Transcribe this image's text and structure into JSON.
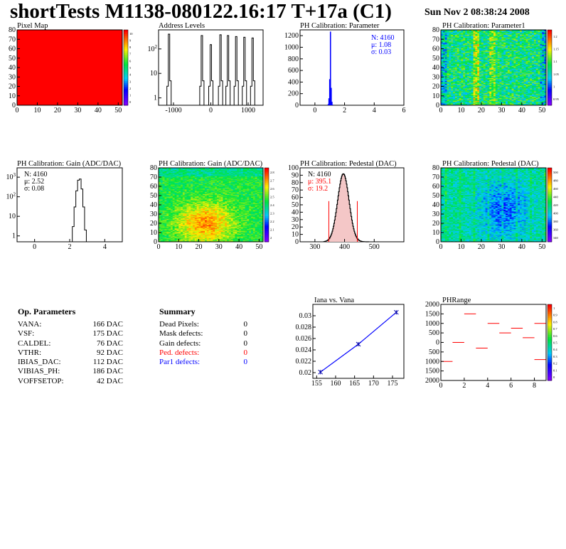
{
  "header": {
    "title": "shortTests M1138-080122.16:17 T+17a (C1)",
    "date": "Sun Nov  2 08:38:24 2008"
  },
  "colors": {
    "red": "#ff0000",
    "blue": "#0000ff",
    "black": "#000000"
  },
  "chart_data": [
    {
      "id": "pixel-map",
      "type": "heatmap",
      "title": "Pixel Map",
      "xlim": [
        0,
        52
      ],
      "ylim": [
        0,
        80
      ],
      "xticks": [
        0,
        10,
        20,
        30,
        40,
        50
      ],
      "yticks": [
        0,
        10,
        20,
        30,
        40,
        50,
        60,
        70,
        80
      ],
      "fill_value": 10,
      "fill_color": "#ff0000",
      "palette": {
        "min": 0,
        "max": 10,
        "labels": [
          "0",
          "1",
          "2",
          "3",
          "4",
          "5",
          "6",
          "7",
          "8",
          "9",
          "10"
        ]
      }
    },
    {
      "id": "address-levels",
      "type": "bar",
      "title": "Address Levels",
      "yscale": "log",
      "xlim": [
        -1400,
        1400
      ],
      "xticks": [
        -1000,
        0,
        1000
      ],
      "ytick_labels": [
        "1",
        "10",
        "10^2"
      ],
      "levels": [
        -1120,
        -240,
        0,
        260,
        460,
        680,
        900,
        1120
      ],
      "heights": [
        400,
        350,
        150,
        380,
        350,
        320,
        300,
        280
      ]
    },
    {
      "id": "ph-parameter",
      "type": "bar",
      "title": "PH Calibration: Parameter",
      "xlim": [
        -1,
        6
      ],
      "ylim": [
        0,
        1300
      ],
      "xticks": [
        0,
        2,
        4,
        6
      ],
      "yticks": [
        0,
        200,
        400,
        600,
        800,
        1000,
        1200
      ],
      "x": [
        0.9,
        0.95,
        1.0,
        1.05,
        1.1,
        1.15,
        1.2
      ],
      "values": [
        20,
        120,
        450,
        1270,
        300,
        60,
        10
      ],
      "stats": {
        "n": "N: 4160",
        "mean": "μ: 1.08",
        "sigma": "σ: 0.03"
      }
    },
    {
      "id": "ph-parameter1",
      "type": "heatmap",
      "title": "PH Calibration: Parameter1",
      "xlim": [
        0,
        52
      ],
      "ylim": [
        0,
        80
      ],
      "xticks": [
        0,
        10,
        20,
        30,
        40,
        50
      ],
      "yticks": [
        0,
        10,
        20,
        30,
        40,
        50,
        60,
        70,
        80
      ],
      "palette": {
        "labels": [
          "0.95",
          "1",
          "1.05",
          "1.1",
          "1.15",
          "1.2"
        ]
      }
    },
    {
      "id": "ph-gain-hist",
      "type": "bar",
      "title": "PH Calibration: Gain (ADC/DAC)",
      "yscale": "log",
      "xlim": [
        -1,
        5
      ],
      "xticks": [
        0,
        2,
        4
      ],
      "ytick_labels": [
        "1",
        "10",
        "10^2",
        "10^3"
      ],
      "x": [
        2.2,
        2.3,
        2.4,
        2.5,
        2.6,
        2.7,
        2.8,
        2.9
      ],
      "values": [
        3,
        30,
        200,
        700,
        800,
        250,
        30,
        2
      ],
      "stats": {
        "n": "N: 4160",
        "mean": "μ: 2.52",
        "sigma": "σ: 0.08"
      }
    },
    {
      "id": "ph-gain-map",
      "type": "heatmap",
      "title": "PH Calibration: Gain (ADC/DAC)",
      "xlim": [
        0,
        52
      ],
      "ylim": [
        0,
        80
      ],
      "xticks": [
        0,
        10,
        20,
        30,
        40,
        50
      ],
      "yticks": [
        0,
        10,
        20,
        30,
        40,
        50,
        60,
        70,
        80
      ],
      "palette": {
        "labels": [
          "2",
          "2.1",
          "2.2",
          "2.3",
          "2.4",
          "2.5",
          "2.6",
          "2.7",
          "2.8"
        ]
      }
    },
    {
      "id": "ph-pedestal-hist",
      "type": "bar",
      "title": "PH Calibration: Pedestal (DAC)",
      "xlim": [
        250,
        600
      ],
      "ylim": [
        0,
        100
      ],
      "xticks": [
        300,
        400,
        500
      ],
      "yticks": [
        0,
        10,
        20,
        30,
        40,
        50,
        60,
        70,
        80,
        90,
        100
      ],
      "cut_lines": [
        347,
        443
      ],
      "stats": {
        "n": "N: 4160",
        "mean": "μ: 395.1",
        "sigma": "σ: 19.2"
      }
    },
    {
      "id": "ph-pedestal-map",
      "type": "heatmap",
      "title": "PH Calibration: Pedestal (DAC)",
      "xlim": [
        0,
        52
      ],
      "ylim": [
        0,
        80
      ],
      "xticks": [
        0,
        10,
        20,
        30,
        40,
        50
      ],
      "yticks": [
        0,
        10,
        20,
        30,
        40,
        50,
        60,
        70,
        80
      ],
      "palette": {
        "labels": [
          "340",
          "360",
          "380",
          "400",
          "420",
          "440",
          "460",
          "480",
          "500"
        ]
      }
    },
    {
      "id": "iana-vana",
      "type": "line",
      "title": "Iana vs. Vana",
      "xlim": [
        154,
        178
      ],
      "ylim": [
        0.019,
        0.032
      ],
      "xticks": [
        155,
        160,
        165,
        170,
        175
      ],
      "yticks": [
        0.02,
        0.022,
        0.024,
        0.026,
        0.028,
        0.03
      ],
      "ytick_labels": [
        "0.02",
        "0.022",
        "0.024",
        "0.026",
        "0.028",
        "0.03"
      ],
      "x": [
        156,
        166,
        176
      ],
      "y": [
        0.0201,
        0.025,
        0.0306
      ]
    },
    {
      "id": "phrange",
      "type": "heatmap",
      "title": "PHRange",
      "xlim": [
        0,
        9
      ],
      "ylim": [
        -2000,
        2000
      ],
      "xticks": [
        0,
        2,
        4,
        6,
        8
      ],
      "yticks": [
        -2000,
        -1500,
        -1000,
        -500,
        0,
        500,
        1000,
        1500,
        2000
      ],
      "ytick_labels": [
        "2000",
        "1500",
        "1000",
        "500",
        "0",
        "500",
        "1000",
        "1500",
        "2000"
      ],
      "segments": [
        [
          0,
          -1000
        ],
        [
          1,
          0
        ],
        [
          2,
          1500
        ],
        [
          3,
          -300
        ],
        [
          4,
          1000
        ],
        [
          5,
          500
        ],
        [
          6,
          750
        ],
        [
          7,
          250
        ],
        [
          8,
          -900
        ],
        [
          8,
          1000
        ]
      ],
      "palette": {
        "labels": [
          "0",
          "0.1",
          "0.2",
          "0.3",
          "0.4",
          "0.5",
          "0.6",
          "0.7",
          "0.8",
          "0.9",
          "1"
        ]
      }
    }
  ],
  "op_params": {
    "title": "Op. Parameters",
    "rows": [
      {
        "k": "VANA:",
        "v": "166 DAC"
      },
      {
        "k": "VSF:",
        "v": "175 DAC"
      },
      {
        "k": "CALDEL:",
        "v": "76 DAC"
      },
      {
        "k": "VTHR:",
        "v": "92 DAC"
      },
      {
        "k": "IBIAS_DAC:",
        "v": "112 DAC"
      },
      {
        "k": "VIBIAS_PH:",
        "v": "186 DAC"
      },
      {
        "k": "VOFFSETOP:",
        "v": "42 DAC"
      }
    ]
  },
  "summary": {
    "title": "Summary",
    "rows": [
      {
        "k": "Dead Pixels:",
        "v": "0",
        "color": "#000000"
      },
      {
        "k": "Mask defects:",
        "v": "0",
        "color": "#000000"
      },
      {
        "k": "Gain defects:",
        "v": "0",
        "color": "#000000"
      },
      {
        "k": "Ped. defects:",
        "v": "0",
        "color": "#ff0000"
      },
      {
        "k": "Par1 defects:",
        "v": "0",
        "color": "#0000ff"
      }
    ]
  }
}
